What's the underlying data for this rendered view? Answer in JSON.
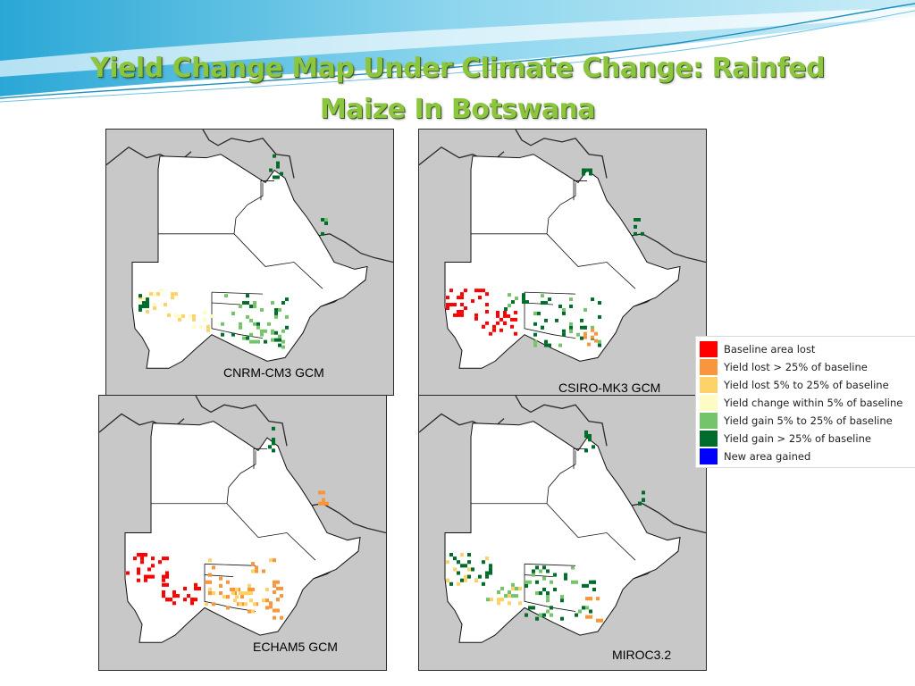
{
  "slide": {
    "title_line1": "Yield Change Map Under Climate Change: Rainfed",
    "title_line2": "Maize In Botswana"
  },
  "maps": [
    {
      "id": "cnrm",
      "label": "CNRM-CM3 GCM"
    },
    {
      "id": "csiro",
      "label": "CSIRO-MK3 GCM"
    },
    {
      "id": "echam",
      "label": "ECHAM5 GCM"
    },
    {
      "id": "miroc",
      "label": "MIROC3.2"
    }
  ],
  "legend": {
    "items": [
      {
        "label": "Baseline area lost",
        "color": "#ff0000"
      },
      {
        "label": "Yield lost > 25% of baseline",
        "color": "#f7963c"
      },
      {
        "label": "Yield lost 5% to 25% of baseline",
        "color": "#fdd268"
      },
      {
        "label": "Yield change within 5% of baseline",
        "color": "#fefcc5"
      },
      {
        "label": "Yield gain 5% to 25% of baseline",
        "color": "#74c46a"
      },
      {
        "label": "Yield gain > 25% of baseline",
        "color": "#006d2c"
      },
      {
        "label": "New area gained",
        "color": "#0000ff"
      }
    ]
  },
  "colors": {
    "title": "#8cc63f",
    "map_background": "#c8c8c8",
    "country_fill": "#ffffff"
  }
}
